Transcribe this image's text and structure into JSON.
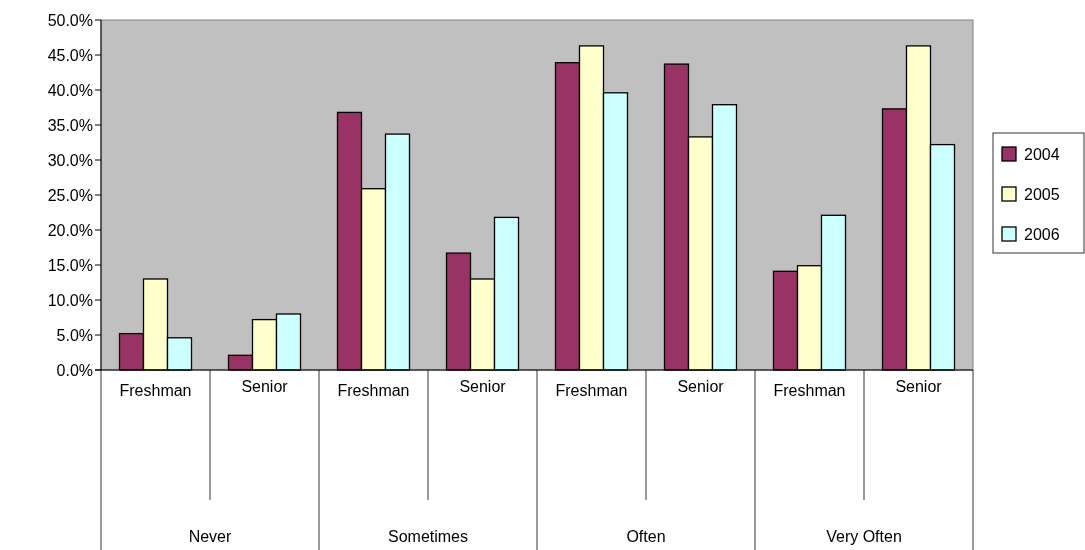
{
  "chart_data": {
    "type": "bar",
    "categories": [
      "Freshman",
      "Senior",
      "Freshman",
      "Senior",
      "Freshman",
      "Senior",
      "Freshman",
      "Senior"
    ],
    "annotations": [
      "Never",
      "Sometimes",
      "Often",
      "Very Often"
    ],
    "series": [
      {
        "name": "2004",
        "color": "#993366",
        "values": [
          5.2,
          2.1,
          36.8,
          16.7,
          43.9,
          43.7,
          14.1,
          37.3
        ]
      },
      {
        "name": "2005",
        "color": "#ffffcc",
        "values": [
          13.0,
          7.2,
          25.9,
          13.0,
          46.3,
          33.3,
          14.9,
          46.3
        ]
      },
      {
        "name": "2006",
        "color": "#ccffff",
        "values": [
          4.6,
          8.0,
          33.7,
          21.8,
          39.6,
          37.9,
          22.1,
          32.2
        ]
      }
    ],
    "ylim": [
      0,
      50
    ],
    "yticks": [
      {
        "value": 0,
        "label": "0.0%"
      },
      {
        "value": 5,
        "label": "5.0%"
      },
      {
        "value": 10,
        "label": "10.0%"
      },
      {
        "value": 15,
        "label": "15.0%"
      },
      {
        "value": 20,
        "label": "20.0%"
      },
      {
        "value": 25,
        "label": "25.0%"
      },
      {
        "value": 30,
        "label": "30.0%"
      },
      {
        "value": 35,
        "label": "35.0%"
      },
      {
        "value": 40,
        "label": "40.0%"
      },
      {
        "value": 45,
        "label": "45.0%"
      },
      {
        "value": 50,
        "label": "50.0%"
      }
    ],
    "legend": "right"
  }
}
